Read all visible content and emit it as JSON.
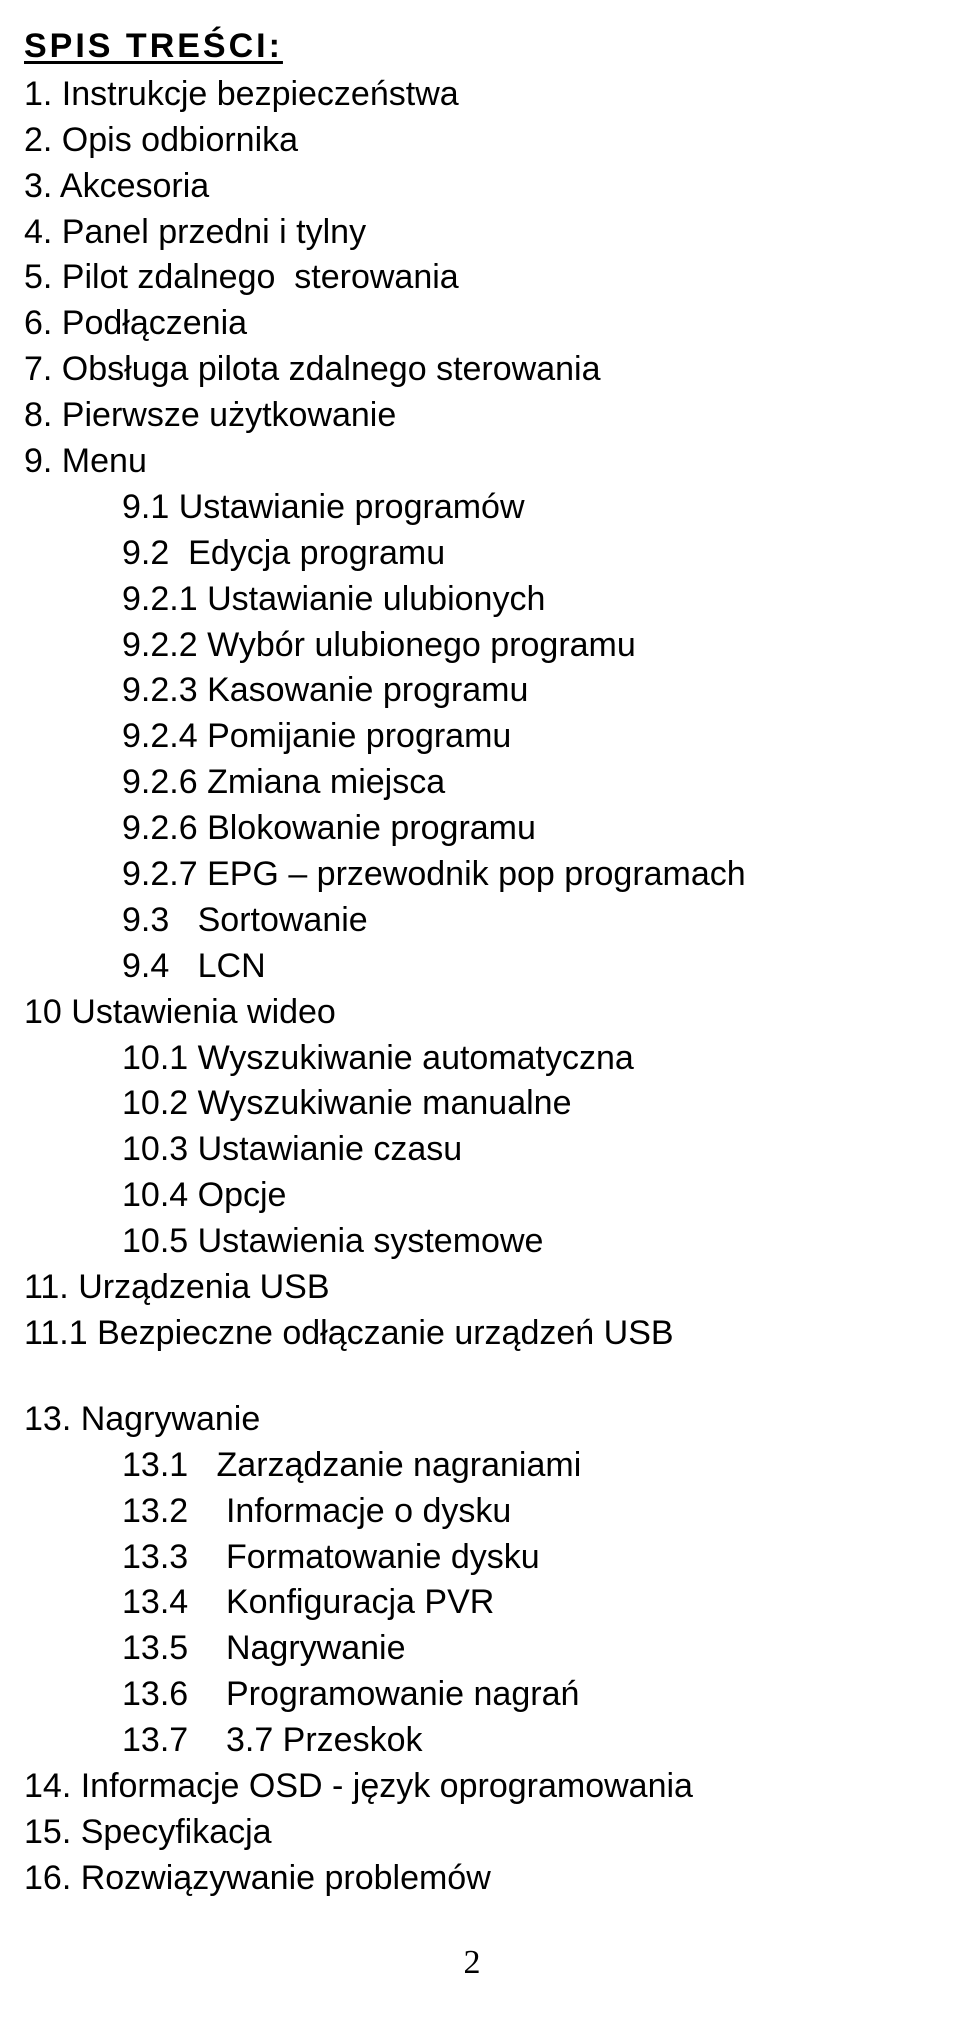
{
  "heading": "SPIS TREŚCI:",
  "lines": [
    {
      "cls": "l0",
      "text": "1. Instrukcje bezpieczeństwa"
    },
    {
      "cls": "l0",
      "text": "2. Opis odbiornika"
    },
    {
      "cls": "l0",
      "text": "3. Akcesoria"
    },
    {
      "cls": "l0",
      "text": "4. Panel przedni i tylny"
    },
    {
      "cls": "l0",
      "text": "5. Pilot zdalnego  sterowania"
    },
    {
      "cls": "l0",
      "text": "6. Podłączenia"
    },
    {
      "cls": "l0",
      "text": "7. Obsługa pilota zdalnego sterowania"
    },
    {
      "cls": "l0",
      "text": "8. Pierwsze użytkowanie"
    },
    {
      "cls": "l0",
      "text": "9. Menu"
    },
    {
      "cls": "l1",
      "text": "9.1 Ustawianie programów"
    },
    {
      "cls": "l1",
      "text": "9.2  Edycja programu"
    },
    {
      "cls": "l1",
      "text": "9.2.1 Ustawianie ulubionych"
    },
    {
      "cls": "l1",
      "text": "9.2.2 Wybór ulubionego programu"
    },
    {
      "cls": "l1",
      "text": "9.2.3 Kasowanie programu"
    },
    {
      "cls": "l1",
      "text": "9.2.4 Pomijanie programu"
    },
    {
      "cls": "l1",
      "text": "9.2.6 Zmiana miejsca"
    },
    {
      "cls": "l1",
      "text": "9.2.6 Blokowanie programu"
    },
    {
      "cls": "l1",
      "text": "9.2.7 EPG – przewodnik pop programach"
    },
    {
      "cls": "l1",
      "text": "9.3   Sortowanie"
    },
    {
      "cls": "l1",
      "text": "9.4   LCN"
    },
    {
      "cls": "l0",
      "text": "10 Ustawienia wideo"
    },
    {
      "cls": "l1",
      "text": "10.1 Wyszukiwanie automatyczna"
    },
    {
      "cls": "l1",
      "text": "10.2 Wyszukiwanie manualne"
    },
    {
      "cls": "l1",
      "text": "10.3 Ustawianie czasu"
    },
    {
      "cls": "l1",
      "text": "10.4 Opcje"
    },
    {
      "cls": "l1",
      "text": "10.5 Ustawienia systemowe"
    },
    {
      "cls": "l0",
      "text": "11. Urządzenia USB"
    },
    {
      "cls": "l0",
      "text": "11.1 Bezpieczne odłączanie urządzeń USB"
    },
    {
      "cls": "l0 gap-top",
      "text": "13. Nagrywanie"
    },
    {
      "cls": "l2",
      "text": "13.1   Zarządzanie nagraniami"
    },
    {
      "cls": "l2",
      "text": "13.2    Informacje o dysku"
    },
    {
      "cls": "l2",
      "text": "13.3    Formatowanie dysku"
    },
    {
      "cls": "l2",
      "text": "13.4    Konfiguracja PVR"
    },
    {
      "cls": "l2",
      "text": "13.5    Nagrywanie"
    },
    {
      "cls": "l2",
      "text": "13.6    Programowanie nagrań"
    },
    {
      "cls": "l2",
      "text": "13.7    3.7 Przeskok"
    },
    {
      "cls": "l0",
      "text": "14. Informacje OSD - język oprogramowania"
    },
    {
      "cls": "l0",
      "text": "15. Specyfikacja"
    },
    {
      "cls": "l0",
      "text": "16. Rozwiązywanie problemów"
    }
  ],
  "page_number": "2"
}
